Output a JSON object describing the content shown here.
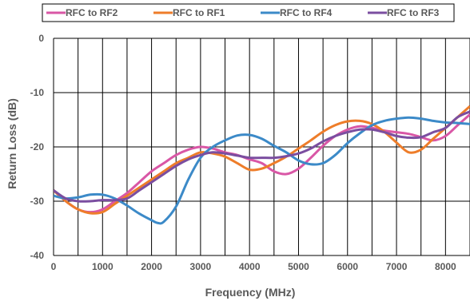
{
  "chart_data": {
    "type": "line",
    "xlabel": "Frequency (MHz)",
    "ylabel": "Return Loss (dB)",
    "xlim": [
      0,
      8500
    ],
    "ylim": [
      -40,
      0
    ],
    "x_ticks": [
      0,
      1000,
      2000,
      3000,
      4000,
      5000,
      6000,
      7000,
      8000
    ],
    "y_ticks": [
      0,
      -10,
      -20,
      -30,
      -40
    ],
    "grid": true,
    "legend_position": "top",
    "series": [
      {
        "name": "RFC to RF2",
        "color": "#D957A6",
        "x": [
          0,
          250,
          500,
          750,
          1000,
          1250,
          1500,
          1750,
          2000,
          2250,
          2500,
          2750,
          3000,
          3250,
          3500,
          3750,
          4000,
          4250,
          4500,
          4750,
          5000,
          5250,
          5500,
          5750,
          6000,
          6250,
          6500,
          6750,
          7000,
          7250,
          7500,
          7750,
          8000,
          8250,
          8500
        ],
        "y": [
          -28,
          -30,
          -31.5,
          -32,
          -31.5,
          -30,
          -28.5,
          -26.5,
          -24.5,
          -23,
          -21.5,
          -20.5,
          -20,
          -20.3,
          -21,
          -21.5,
          -22.3,
          -23,
          -24.5,
          -25,
          -24,
          -22,
          -19.8,
          -18,
          -16.8,
          -16.2,
          -16.5,
          -17,
          -17.3,
          -17.6,
          -18.2,
          -18.8,
          -18,
          -16,
          -14
        ]
      },
      {
        "name": "RFC to RF1",
        "color": "#EE7D2A",
        "x": [
          0,
          250,
          500,
          750,
          1000,
          1250,
          1500,
          1750,
          2000,
          2250,
          2500,
          2750,
          3000,
          3250,
          3500,
          3750,
          4000,
          4250,
          4500,
          4750,
          5000,
          5250,
          5500,
          5750,
          6000,
          6250,
          6500,
          6750,
          7000,
          7250,
          7500,
          7750,
          8000,
          8250,
          8500
        ],
        "y": [
          -28,
          -30,
          -31.5,
          -32.2,
          -32,
          -30.5,
          -29,
          -27.5,
          -26,
          -24.5,
          -23,
          -22,
          -21,
          -21.2,
          -21.8,
          -23,
          -24.2,
          -24,
          -23,
          -21.8,
          -20.3,
          -18.8,
          -17.2,
          -16,
          -15.3,
          -15.2,
          -15.8,
          -17.2,
          -19.2,
          -21,
          -20.5,
          -18.5,
          -16.5,
          -14.5,
          -12.5
        ]
      },
      {
        "name": "RFC to RF4",
        "color": "#3C8AC8",
        "x": [
          0,
          250,
          500,
          750,
          1000,
          1250,
          1500,
          1750,
          2000,
          2125,
          2250,
          2500,
          2750,
          3000,
          3250,
          3500,
          3750,
          4000,
          4250,
          4500,
          4750,
          5000,
          5250,
          5500,
          5750,
          6000,
          6250,
          6500,
          6750,
          7000,
          7250,
          7500,
          7750,
          8000,
          8250,
          8500
        ],
        "y": [
          -29,
          -29.5,
          -29.3,
          -28.8,
          -28.8,
          -29.5,
          -30.8,
          -32.3,
          -33.5,
          -34,
          -33.8,
          -31,
          -26,
          -22,
          -20,
          -18.8,
          -17.9,
          -17.8,
          -18.5,
          -19.8,
          -21,
          -22.5,
          -23.2,
          -23,
          -21.5,
          -19.3,
          -17.5,
          -16,
          -15.2,
          -14.8,
          -14.6,
          -14.8,
          -15.2,
          -15.5,
          -15.6,
          -15.8
        ]
      },
      {
        "name": "RFC to RF3",
        "color": "#7B4EA0",
        "x": [
          0,
          250,
          500,
          750,
          1000,
          1250,
          1500,
          1750,
          2000,
          2250,
          2500,
          2750,
          3000,
          3250,
          3500,
          3750,
          4000,
          4250,
          4500,
          4750,
          5000,
          5250,
          5500,
          5750,
          6000,
          6250,
          6500,
          6750,
          7000,
          7250,
          7500,
          7750,
          8000,
          8250,
          8500
        ],
        "y": [
          -28,
          -29.5,
          -30,
          -30,
          -29.8,
          -29.8,
          -29.5,
          -28,
          -26.5,
          -25,
          -23.5,
          -22.3,
          -21.5,
          -21,
          -21.2,
          -21.6,
          -22,
          -22,
          -22,
          -21.7,
          -21.2,
          -20.3,
          -19,
          -18,
          -17.3,
          -16.8,
          -16.8,
          -17.3,
          -18,
          -18.3,
          -18.2,
          -17.3,
          -16.5,
          -14.5,
          -13.5
        ]
      }
    ]
  }
}
